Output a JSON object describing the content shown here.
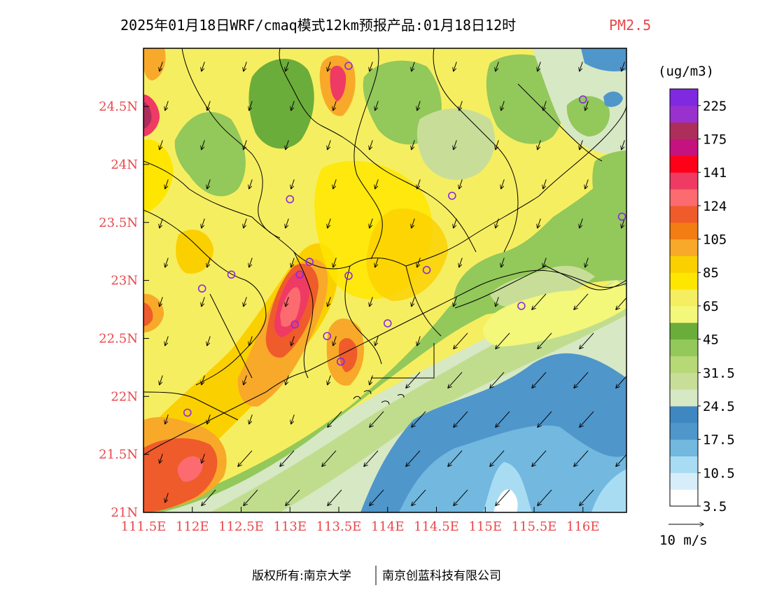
{
  "header": {
    "title": "2025年01月18日WRF/cmaq模式12km预报产品:01月18日12时",
    "species": "PM2.5"
  },
  "footer": {
    "left": "版权所有:南京大学",
    "right": "南京创蓝科技有限公司"
  },
  "colors": {
    "accent_red": "#e8474b",
    "scale": [
      "#ffffff",
      "#d7eefa",
      "#a8dcf3",
      "#72b8df",
      "#4f96cb",
      "#3f87c1",
      "#d7e8c4",
      "#c8de98",
      "#b7d877",
      "#93c85a",
      "#6bad3a",
      "#f3f77a",
      "#f6ee61",
      "#ffe600",
      "#fbd000",
      "#f8a929",
      "#f27d12",
      "#ef5b2b",
      "#fb6b6f",
      "#ef3a63",
      "#ff0019",
      "#c4127e",
      "#ad2d5b",
      "#9931cf",
      "#7f2ae0"
    ]
  },
  "chart_data": {
    "type": "heatmap",
    "title": "2025年01月18日WRF/cmaq模式12km预报产品:01月18日12时 PM2.5",
    "x_ticks": [
      "111.5E",
      "112E",
      "112.5E",
      "113E",
      "113.5E",
      "114E",
      "114.5E",
      "115E",
      "115.5E",
      "116E"
    ],
    "x_values": [
      111.5,
      112,
      112.5,
      113,
      113.5,
      114,
      114.5,
      115,
      115.5,
      116
    ],
    "y_ticks": [
      "21N",
      "21.5N",
      "22N",
      "22.5N",
      "23N",
      "23.5N",
      "24N",
      "24.5N"
    ],
    "y_values": [
      21,
      21.5,
      22,
      22.5,
      23,
      23.5,
      24,
      24.5
    ],
    "xlim": [
      111.5,
      116.7
    ],
    "ylim": [
      21,
      25.0
    ],
    "legend": {
      "unit": "(ug/m3)",
      "labels": [
        "225",
        "175",
        "141",
        "124",
        "105",
        "85",
        "65",
        "45",
        "31.5",
        "24.5",
        "17.5",
        "10.5",
        "3.5"
      ],
      "wind_reference": "10 m/s"
    },
    "stations": [
      {
        "lon": 113.0,
        "lat": 23.7
      },
      {
        "lon": 113.6,
        "lat": 24.85
      },
      {
        "lon": 114.66,
        "lat": 23.73
      },
      {
        "lon": 116.0,
        "lat": 24.56
      },
      {
        "lon": 116.4,
        "lat": 23.55
      },
      {
        "lon": 112.1,
        "lat": 22.93
      },
      {
        "lon": 112.4,
        "lat": 23.05
      },
      {
        "lon": 113.1,
        "lat": 23.05
      },
      {
        "lon": 113.2,
        "lat": 23.16
      },
      {
        "lon": 113.6,
        "lat": 23.04
      },
      {
        "lon": 114.4,
        "lat": 23.09
      },
      {
        "lon": 113.05,
        "lat": 22.62
      },
      {
        "lon": 113.38,
        "lat": 22.52
      },
      {
        "lon": 114.0,
        "lat": 22.63
      },
      {
        "lon": 113.52,
        "lat": 22.3
      },
      {
        "lon": 115.37,
        "lat": 22.78
      },
      {
        "lon": 111.95,
        "lat": 21.86
      }
    ],
    "hotspots": [
      {
        "lon": 113.05,
        "lat": 22.85,
        "value": 124
      },
      {
        "lon": 113.45,
        "lat": 24.7,
        "value": 124
      },
      {
        "lon": 111.5,
        "lat": 24.45,
        "value": 175
      },
      {
        "lon": 111.9,
        "lat": 21.45,
        "value": 105
      },
      {
        "lon": 115.1,
        "lat": 21.3,
        "value": 3.5
      }
    ],
    "wind_direction": "northeasterly"
  }
}
